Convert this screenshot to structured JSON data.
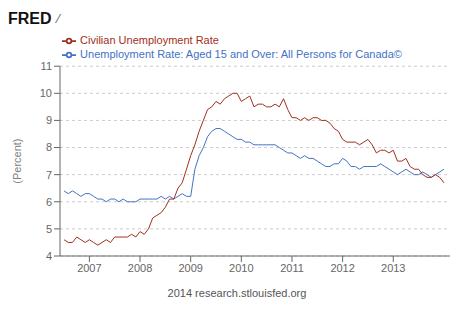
{
  "chart_data": {
    "type": "line",
    "title": "FRED",
    "annotations": [
      "⁄",
      "2014 research.stlouisfed.org"
    ],
    "y_label": "(Percent)",
    "x": [
      2006.5,
      2006.583,
      2006.667,
      2006.75,
      2006.833,
      2006.917,
      2007.0,
      2007.083,
      2007.167,
      2007.25,
      2007.333,
      2007.417,
      2007.5,
      2007.583,
      2007.667,
      2007.75,
      2007.833,
      2007.917,
      2008.0,
      2008.083,
      2008.167,
      2008.25,
      2008.333,
      2008.417,
      2008.5,
      2008.583,
      2008.667,
      2008.75,
      2008.833,
      2008.917,
      2009.0,
      2009.083,
      2009.167,
      2009.25,
      2009.333,
      2009.417,
      2009.5,
      2009.583,
      2009.667,
      2009.75,
      2009.833,
      2009.917,
      2010.0,
      2010.083,
      2010.167,
      2010.25,
      2010.333,
      2010.417,
      2010.5,
      2010.583,
      2010.667,
      2010.75,
      2010.833,
      2010.917,
      2011.0,
      2011.083,
      2011.167,
      2011.25,
      2011.333,
      2011.417,
      2011.5,
      2011.583,
      2011.667,
      2011.75,
      2011.833,
      2011.917,
      2012.0,
      2012.083,
      2012.167,
      2012.25,
      2012.333,
      2012.417,
      2012.5,
      2012.583,
      2012.667,
      2012.75,
      2012.833,
      2012.917,
      2013.0,
      2013.083,
      2013.167,
      2013.25,
      2013.333,
      2013.417,
      2013.5,
      2013.583,
      2013.667,
      2013.75,
      2013.833,
      2013.917,
      2014.0
    ],
    "series": [
      {
        "name": "Unemployment Rate: Aged 15 and Over: All Persons for Canada©",
        "color": "#4472c4",
        "values": [
          6.4,
          6.3,
          6.4,
          6.3,
          6.2,
          6.3,
          6.3,
          6.2,
          6.1,
          6.1,
          6.0,
          6.1,
          6.1,
          6.0,
          6.1,
          6.0,
          6.0,
          6.0,
          6.1,
          6.1,
          6.1,
          6.1,
          6.1,
          6.2,
          6.1,
          6.2,
          6.1,
          6.2,
          6.3,
          6.2,
          6.2,
          7.2,
          7.7,
          8.0,
          8.4,
          8.6,
          8.7,
          8.7,
          8.6,
          8.5,
          8.4,
          8.3,
          8.3,
          8.2,
          8.2,
          8.1,
          8.1,
          8.1,
          8.1,
          8.1,
          8.1,
          8.0,
          7.9,
          7.8,
          7.8,
          7.7,
          7.6,
          7.7,
          7.6,
          7.6,
          7.5,
          7.4,
          7.3,
          7.3,
          7.4,
          7.4,
          7.6,
          7.5,
          7.3,
          7.3,
          7.2,
          7.3,
          7.3,
          7.3,
          7.3,
          7.4,
          7.3,
          7.2,
          7.1,
          7.0,
          7.1,
          7.2,
          7.1,
          7.0,
          7.0,
          7.1,
          7.0,
          6.9,
          7.0,
          7.1,
          7.2
        ]
      },
      {
        "name": "Civilian Unemployment Rate",
        "color": "#a03020",
        "values": [
          4.6,
          4.5,
          4.5,
          4.7,
          4.6,
          4.5,
          4.6,
          4.5,
          4.4,
          4.5,
          4.6,
          4.5,
          4.7,
          4.7,
          4.7,
          4.7,
          4.8,
          4.7,
          4.9,
          4.8,
          5.0,
          5.4,
          5.5,
          5.6,
          5.8,
          6.1,
          6.1,
          6.5,
          6.7,
          7.2,
          7.7,
          8.1,
          8.6,
          9.0,
          9.4,
          9.5,
          9.7,
          9.6,
          9.8,
          9.9,
          10.0,
          10.0,
          9.7,
          9.8,
          9.9,
          9.5,
          9.6,
          9.6,
          9.5,
          9.5,
          9.6,
          9.5,
          9.8,
          9.4,
          9.1,
          9.1,
          9.0,
          9.1,
          9.0,
          9.1,
          9.1,
          9.0,
          9.0,
          8.9,
          8.7,
          8.6,
          8.3,
          8.2,
          8.2,
          8.2,
          8.1,
          8.2,
          8.3,
          8.1,
          7.8,
          7.9,
          7.9,
          7.8,
          7.9,
          7.5,
          7.5,
          7.6,
          7.3,
          7.2,
          7.2,
          7.0,
          6.9,
          6.9,
          7.0,
          6.9,
          6.7
        ]
      }
    ],
    "xlim": [
      2006.42,
      2014.12
    ],
    "xticks": [
      2007,
      2008,
      2009,
      2010,
      2011,
      2012,
      2013
    ],
    "ylim": [
      4,
      11
    ],
    "yticks": [
      4,
      5,
      6,
      7,
      8,
      9,
      10,
      11
    ],
    "grid": "y",
    "legend": "top"
  }
}
